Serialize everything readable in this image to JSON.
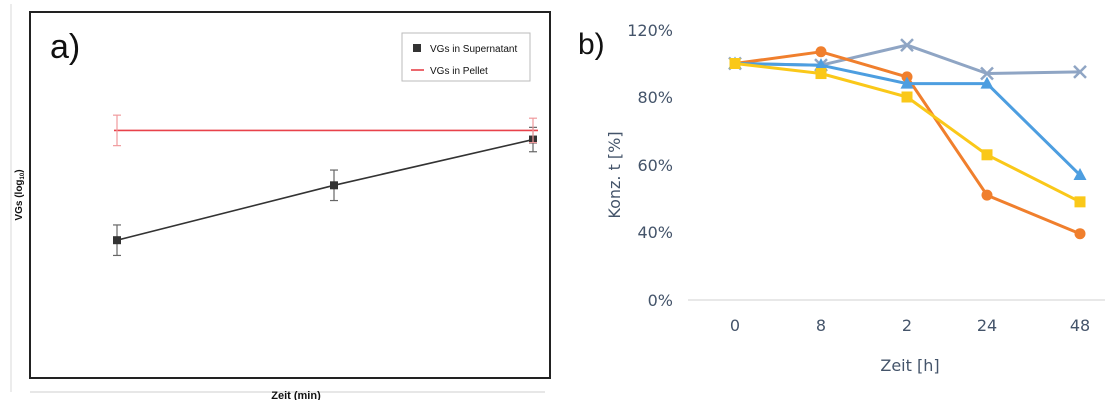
{
  "panel_a": {
    "letter": "a)",
    "x_label": "Zeit (min)",
    "y_label": "VGs (log",
    "y_label_sub": "10",
    "y_label_close": ")"
  },
  "panel_b": {
    "letter": "b)",
    "x_label": "Zeit [h]",
    "y_label": "Konz. t [%]"
  },
  "chart_data": [
    {
      "type": "line",
      "panel": "a",
      "xlabel": "Zeit (min)",
      "ylabel": "VGs (log10)",
      "ylim": [
        0,
        10
      ],
      "x": [
        0,
        1,
        2
      ],
      "grid": false,
      "legend": "top-right",
      "series": [
        {
          "name": "VGs in Supernatant",
          "color": "#333333",
          "marker": "square",
          "values": [
            3.6,
            5.4,
            6.9
          ],
          "errors": [
            0.5,
            0.5,
            0.4
          ]
        },
        {
          "name": "VGs in Pellet",
          "color": "#e8424a",
          "marker": "none",
          "values": [
            7.2,
            7.2,
            7.2
          ],
          "errors": [
            0.5,
            0,
            0.4
          ]
        }
      ]
    },
    {
      "type": "line",
      "panel": "b",
      "xlabel": "Zeit [h]",
      "ylabel": "Konz. t [%]",
      "categories": [
        "0",
        "8",
        "2",
        "24",
        "48"
      ],
      "yticks": [
        "0%",
        "40%",
        "60%",
        "80%",
        "120%"
      ],
      "ylim": [
        0,
        120
      ],
      "grid": false,
      "series": [
        {
          "color": "#8fa5c4",
          "marker": "x",
          "values": [
            100,
            99,
            111,
            94,
            95
          ]
        },
        {
          "color": "#f07f2d",
          "marker": "circle",
          "values": [
            100,
            107,
            92,
            51,
            39
          ]
        },
        {
          "color": "#4d9ee0",
          "marker": "triangle",
          "values": [
            100,
            99,
            88,
            88,
            57
          ]
        },
        {
          "color": "#fac819",
          "marker": "square",
          "values": [
            100,
            94,
            80,
            63,
            49
          ]
        }
      ]
    }
  ]
}
